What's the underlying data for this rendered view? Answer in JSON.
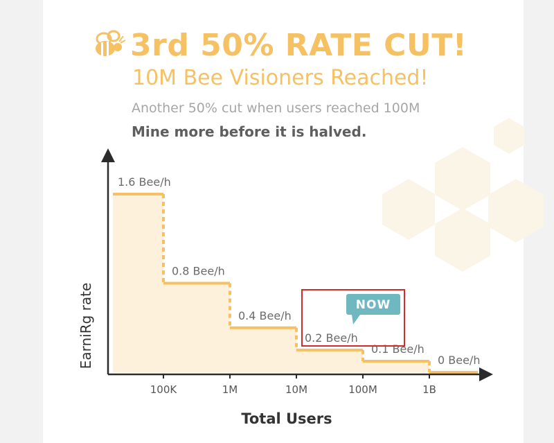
{
  "header": {
    "title": "3rd 50% RATE CUT!",
    "subtitle": "10M Bee Visioners Reached!",
    "note": "Another 50% cut when users reached 100M",
    "callout": "Mine more before it is halved.",
    "logo_icon": "bee-icon"
  },
  "chart_data": {
    "type": "area",
    "xlabel": "Total Users",
    "ylabel": "EarniRg rate",
    "categories": [
      "100K",
      "1M",
      "10M",
      "100M",
      "1B"
    ],
    "series": [
      {
        "steps": [
          {
            "range": [
              "0",
              "100K"
            ],
            "rate": 1.6,
            "label": "1.6 Bee/h"
          },
          {
            "range": [
              "100K",
              "1M"
            ],
            "rate": 0.8,
            "label": "0.8 Bee/h"
          },
          {
            "range": [
              "1M",
              "10M"
            ],
            "rate": 0.4,
            "label": "0.4 Bee/h"
          },
          {
            "range": [
              "10M",
              "100M"
            ],
            "rate": 0.2,
            "label": "0.2 Bee/h"
          },
          {
            "range": [
              "100M",
              "1B"
            ],
            "rate": 0.1,
            "label": "0.1 Bee/h"
          },
          {
            "range": [
              "1B",
              ""
            ],
            "rate": 0,
            "label": "0 Bee/h"
          }
        ]
      }
    ],
    "annotation": {
      "text": "NOW",
      "at_step": "0.2 Bee/h"
    },
    "ylim": [
      0,
      1.6
    ],
    "grid": false,
    "colors": {
      "line": "#f5c163",
      "fill": "#fdf1dc",
      "axis": "#2b2b2b",
      "now_badge": "#6fb8c0",
      "highlight_box": "#d42a2a",
      "hexagon": "#fbf5e8"
    }
  }
}
